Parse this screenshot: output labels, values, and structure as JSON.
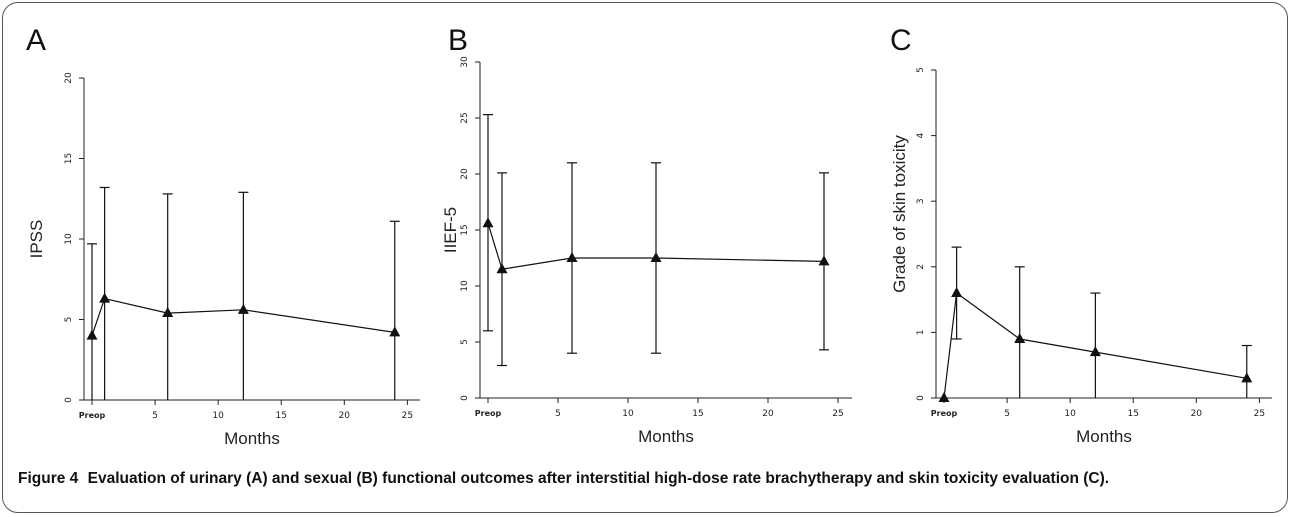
{
  "caption": {
    "label": "Figure 4",
    "text": "Evaluation of urinary (A) and sexual (B) functional outcomes after interstitial high-dose rate brachytherapy and skin toxicity evaluation (C)."
  },
  "chart_data": [
    {
      "type": "line",
      "panel_label": "A",
      "xlabel": "Months",
      "ylabel": "IPSS",
      "xlim": [
        0,
        26
      ],
      "ylim": [
        0,
        20
      ],
      "x_ticks": [
        {
          "value": 0,
          "label": "Preop"
        },
        {
          "value": 5,
          "label": "5"
        },
        {
          "value": 10,
          "label": "10"
        },
        {
          "value": 15,
          "label": "15"
        },
        {
          "value": 20,
          "label": "20"
        },
        {
          "value": 25,
          "label": "25"
        }
      ],
      "y_ticks": [
        0,
        5,
        10,
        15,
        20
      ],
      "series": [
        {
          "points": [
            {
              "x": 0,
              "y": 4.0,
              "upper": 9.7
            },
            {
              "x": 1,
              "y": 6.3,
              "upper": 13.2
            },
            {
              "x": 6,
              "y": 5.4,
              "upper": 12.8
            },
            {
              "x": 12,
              "y": 5.6,
              "upper": 12.9
            },
            {
              "x": 24,
              "y": 4.2,
              "upper": 11.1
            }
          ]
        }
      ]
    },
    {
      "type": "line",
      "panel_label": "B",
      "xlabel": "Months",
      "ylabel": "IIEF-5",
      "xlim": [
        0,
        26
      ],
      "ylim": [
        0,
        30
      ],
      "x_ticks": [
        {
          "value": 0,
          "label": "Preop"
        },
        {
          "value": 5,
          "label": "5"
        },
        {
          "value": 10,
          "label": "10"
        },
        {
          "value": 15,
          "label": "15"
        },
        {
          "value": 20,
          "label": "20"
        },
        {
          "value": 25,
          "label": "25"
        }
      ],
      "y_ticks": [
        0,
        5,
        10,
        15,
        20,
        25,
        30
      ],
      "series": [
        {
          "points": [
            {
              "x": 0,
              "y": 15.6,
              "lower": 6.0,
              "upper": 25.3
            },
            {
              "x": 1,
              "y": 11.5,
              "lower": 2.9,
              "upper": 20.1
            },
            {
              "x": 6,
              "y": 12.5,
              "lower": 4.0,
              "upper": 21.0
            },
            {
              "x": 12,
              "y": 12.5,
              "lower": 4.0,
              "upper": 21.0
            },
            {
              "x": 24,
              "y": 12.2,
              "lower": 4.3,
              "upper": 20.1
            }
          ]
        }
      ]
    },
    {
      "type": "line",
      "panel_label": "C",
      "xlabel": "Months",
      "ylabel": "Grade of skin toxicity",
      "xlim": [
        0,
        26
      ],
      "ylim": [
        0,
        5
      ],
      "x_ticks": [
        {
          "value": 0,
          "label": "Preop"
        },
        {
          "value": 5,
          "label": "5"
        },
        {
          "value": 10,
          "label": "10"
        },
        {
          "value": 15,
          "label": "15"
        },
        {
          "value": 20,
          "label": "20"
        },
        {
          "value": 25,
          "label": "25"
        }
      ],
      "y_ticks": [
        0,
        1,
        2,
        3,
        4,
        5
      ],
      "series": [
        {
          "points": [
            {
              "x": 0,
              "y": 0.0
            },
            {
              "x": 1,
              "y": 1.6,
              "lower": 0.9,
              "upper": 2.3
            },
            {
              "x": 6,
              "y": 0.9,
              "upper": 2.0
            },
            {
              "x": 12,
              "y": 0.7,
              "upper": 1.6
            },
            {
              "x": 24,
              "y": 0.3,
              "upper": 0.8
            }
          ]
        }
      ]
    }
  ]
}
